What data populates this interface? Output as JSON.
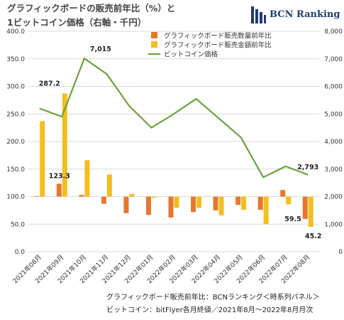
{
  "title_line1": "グラフィックボードの販売前年比（%）と",
  "title_line2": "1ビットコイン価格（右軸・千円）",
  "logo": {
    "text": "BCN Ranking",
    "color": "#1f3b6f"
  },
  "footnotes": [
    "グラフィックボード販売前年比：BCNランキング＜時系列パネル＞",
    "ビットコイン：bitFlyer各月終値／2021年8月～2022年8月月次"
  ],
  "colors": {
    "quantity": "#e8762c",
    "amount": "#f5bd1f",
    "bitcoin": "#6aa33a",
    "grid": "#d9d9d9"
  },
  "chart_data": {
    "type": "bar",
    "categories": [
      "2021年08月",
      "2021年09月",
      "2021年10月",
      "2021年11月",
      "2021年12月",
      "2022年01月",
      "2022年02月",
      "2022年03月",
      "2022年04月",
      "2022年05月",
      "2022年06月",
      "2022年07月",
      "2022年08月"
    ],
    "left_axis": {
      "min": 0,
      "max": 400,
      "ticks": [
        "0.0",
        "50.0",
        "100.0",
        "150.0",
        "200.0",
        "250.0",
        "300.0",
        "350.0",
        "400.0"
      ]
    },
    "right_axis": {
      "min": 0,
      "max": 8000,
      "ticks": [
        "0",
        "1,000",
        "2,000",
        "3,000",
        "4,000",
        "5,000",
        "6,000",
        "7,000",
        "8,000"
      ]
    },
    "series": [
      {
        "name": "グラフィックボード販売数量前年比",
        "type": "bar",
        "axis": "left",
        "values": [
          101,
          123.3,
          103,
          87,
          70,
          67,
          62,
          72,
          75,
          85,
          76,
          112,
          59.5
        ]
      },
      {
        "name": "グラフィックボード販売金額前年比",
        "type": "bar",
        "axis": "left",
        "values": [
          237,
          287.2,
          166,
          140,
          105,
          98,
          80,
          80,
          66,
          76,
          50,
          86,
          45.2
        ]
      },
      {
        "name": "ビットコイン価格",
        "type": "line",
        "axis": "right",
        "values": [
          5200,
          4900,
          7015,
          6450,
          5300,
          4500,
          5000,
          5550,
          4850,
          4150,
          2700,
          3100,
          2793
        ]
      }
    ],
    "data_labels": [
      {
        "series": 1,
        "index": 1,
        "text": "287.2",
        "side": "left"
      },
      {
        "series": 0,
        "index": 1,
        "text": "123.3",
        "side": "above"
      },
      {
        "series": 2,
        "index": 2,
        "text": "7,015",
        "side": "right-above"
      },
      {
        "series": 2,
        "index": 12,
        "text": "2,793",
        "side": "above"
      },
      {
        "series": 0,
        "index": 12,
        "text": "59.5",
        "side": "left"
      },
      {
        "series": 1,
        "index": 12,
        "text": "45.2",
        "side": "below"
      }
    ]
  }
}
